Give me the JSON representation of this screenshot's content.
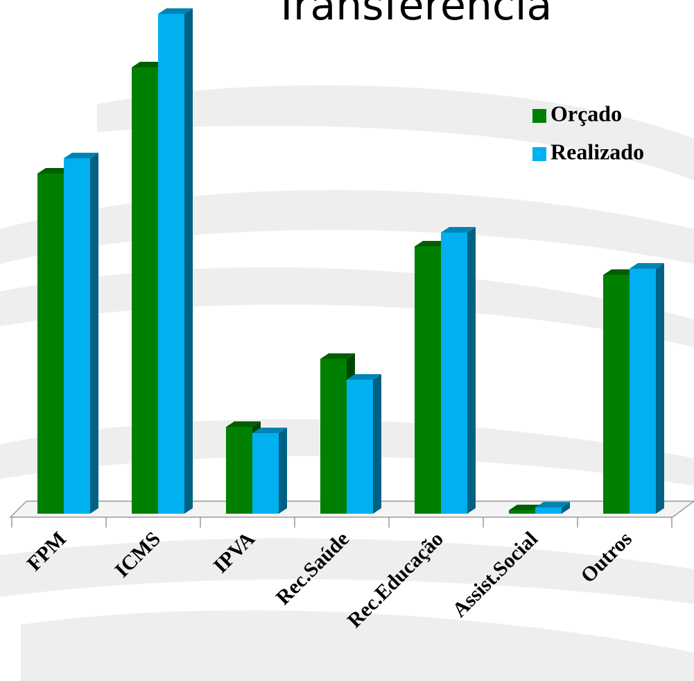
{
  "chart_data": {
    "type": "bar3d",
    "title": "Transferencia",
    "categories": [
      "FPM",
      "ICMS",
      "IPVA",
      "Rec.Saúde",
      "Rec.Educação",
      "Assist.Social",
      "Outros"
    ],
    "series": [
      {
        "name": "Orçado",
        "color": "#008000",
        "values": [
          490,
          643,
          125,
          223,
          385,
          5,
          344
        ]
      },
      {
        "name": "Realizado",
        "color": "#00b0f0",
        "values": [
          512,
          720,
          116,
          193,
          405,
          9,
          353
        ]
      }
    ],
    "ylim": [
      0,
      720
    ]
  }
}
